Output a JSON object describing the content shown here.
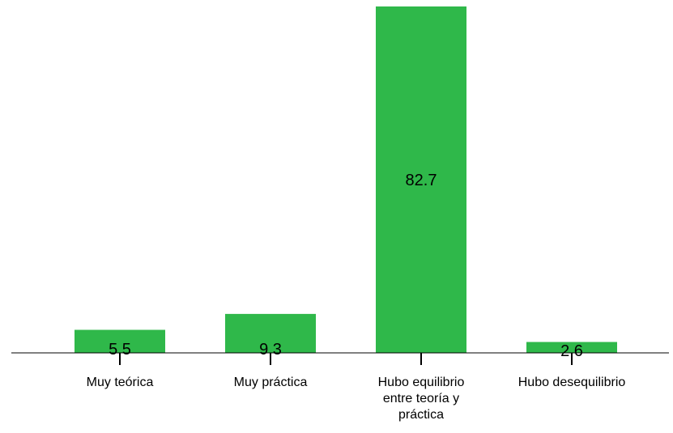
{
  "chart_data": {
    "type": "bar",
    "categories": [
      [
        "Muy teórica"
      ],
      [
        "Muy práctica"
      ],
      [
        "Hubo equilibrio",
        "entre teoría y",
        "práctica"
      ],
      [
        "Hubo desequilibrio"
      ]
    ],
    "values": [
      5.5,
      9.3,
      82.7,
      2.6
    ],
    "data_labels": [
      "5.5",
      "9.3",
      "82.7",
      "2.6"
    ],
    "title": "",
    "xlabel": "",
    "ylabel": "",
    "ylim": [
      0,
      82.7
    ],
    "grid": false,
    "legend": "none",
    "bar_color": "#2fb84a"
  }
}
